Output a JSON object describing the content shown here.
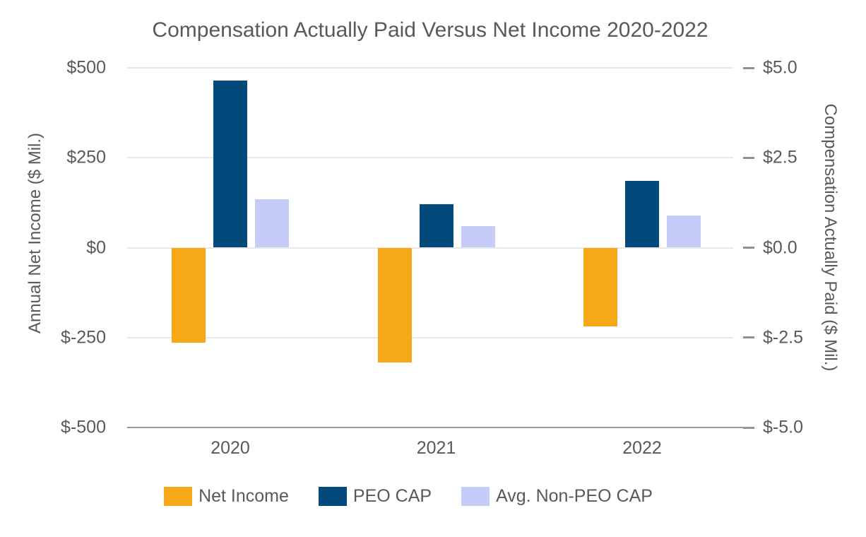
{
  "chart_data": {
    "type": "bar",
    "title": "Compensation Actually Paid Versus Net Income 2020-2022",
    "categories": [
      "2020",
      "2021",
      "2022"
    ],
    "series": [
      {
        "name": "Net Income",
        "axis": "left",
        "color": "#F7A819",
        "values": [
          -265,
          -320,
          -220
        ]
      },
      {
        "name": "PEO CAP",
        "axis": "right",
        "color": "#04497C",
        "values": [
          4.65,
          1.2,
          1.85
        ]
      },
      {
        "name": "Avg. Non-PEO CAP",
        "axis": "right",
        "color": "#C4CCF7",
        "values": [
          1.35,
          0.6,
          0.9
        ]
      }
    ],
    "left_axis": {
      "title": "Annual Net Income ($ Mil.)",
      "ticks": [
        "$500",
        "$250",
        "$0",
        "$-250",
        "$-500"
      ],
      "tick_values": [
        500,
        250,
        0,
        -250,
        -500
      ],
      "range": [
        -500,
        500
      ]
    },
    "right_axis": {
      "title": "Compensation Actually Paid ($ Mil.)",
      "ticks": [
        "$5.0",
        "$2.5",
        "$0.0",
        "$-2.5",
        "$-5.0"
      ],
      "tick_values": [
        5,
        2.5,
        0,
        -2.5,
        -5
      ],
      "range": [
        -5,
        5
      ]
    },
    "grid": true,
    "legend_position": "bottom"
  }
}
